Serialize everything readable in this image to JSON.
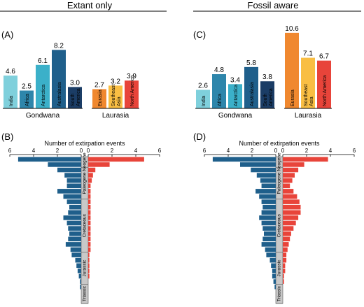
{
  "figure": {
    "left_title": "Extant only",
    "right_title": "Fossil aware"
  },
  "chart_data": [
    {
      "type": "bar",
      "panel_label": "(A)",
      "title": "Extant only",
      "groups": [
        {
          "name": "Gondwana",
          "categories": [
            "India",
            "Africa",
            "Antarctica",
            "Australasia",
            "South America"
          ],
          "values": [
            4.6,
            2.5,
            6.1,
            8.2,
            3.0
          ],
          "colors": [
            "#7fd0dc",
            "#2e86ab",
            "#3bb0c9",
            "#1f5f8b",
            "#1b3d66"
          ]
        },
        {
          "name": "Laurasia",
          "categories": [
            "Eurasia",
            "Southeast Asia",
            "North America"
          ],
          "values": [
            2.7,
            3.2,
            3.9
          ],
          "colors": [
            "#f0882f",
            "#f9be43",
            "#e8443a"
          ]
        }
      ],
      "value_labels": [
        "4.6",
        "2.5",
        "6.1",
        "8.2",
        "3.0",
        "2.7",
        "3.2",
        "3.9"
      ]
    },
    {
      "type": "bar",
      "panel_label": "(C)",
      "title": "Fossil aware",
      "groups": [
        {
          "name": "Gondwana",
          "categories": [
            "India",
            "Africa",
            "Antarctica",
            "Australasia",
            "South America"
          ],
          "values": [
            2.6,
            4.8,
            3.4,
            5.8,
            3.8
          ],
          "colors": [
            "#7fd0dc",
            "#2e86ab",
            "#3bb0c9",
            "#1f5f8b",
            "#1b3d66"
          ]
        },
        {
          "name": "Laurasia",
          "categories": [
            "Eurasia",
            "Southeast Asia",
            "North America"
          ],
          "values": [
            10.6,
            7.1,
            6.7
          ],
          "colors": [
            "#f0882f",
            "#f9be43",
            "#e8443a"
          ]
        }
      ],
      "value_labels": [
        "2.6",
        "4.8",
        "3.4",
        "5.8",
        "3.8",
        "10.6",
        "7.1",
        "6.7"
      ]
    },
    {
      "type": "bar",
      "orientation": "horizontal-mirrored",
      "panel_label": "(B)",
      "xlabel": "Number of extirpation events",
      "xlim": [
        0,
        6
      ],
      "ticks": [
        "6",
        "4",
        "2",
        "0",
        "0",
        "2",
        "4",
        "6"
      ],
      "periods": [
        "Neogene",
        "Paleogene",
        "Cretaceous",
        "Jurassic",
        "Triassic"
      ],
      "left_series": {
        "name": "Gondwana",
        "color": "#1f5f8b",
        "values": [
          5.3,
          2.8,
          2.0,
          1.4,
          1.2,
          1.2,
          2.0,
          1.5,
          1.2,
          1.0,
          1.1,
          1.5,
          1.2,
          1.1,
          1.0,
          1.1,
          1.3,
          0.9,
          0.8,
          0.5,
          0.4,
          0.3,
          0.2,
          0.1,
          0.1
        ]
      },
      "right_series": {
        "name": "Laurasia",
        "color": "#e8443a",
        "values": [
          4.7,
          1.8,
          0.6,
          0.4,
          0.3,
          0.2,
          0.2,
          0.2,
          0.2,
          0.2,
          0.2,
          0.2,
          0.2,
          0.2,
          0.2,
          0.2,
          0.2,
          0.2,
          0.1,
          0.1,
          0.1,
          0.1,
          0.1,
          0.0,
          0.0
        ]
      }
    },
    {
      "type": "bar",
      "orientation": "horizontal-mirrored",
      "panel_label": "(D)",
      "xlabel": "Number of extirpation events",
      "xlim": [
        0,
        6
      ],
      "ticks": [
        "6",
        "4",
        "2",
        "0",
        "0",
        "2",
        "4",
        "6"
      ],
      "periods": [
        "Neogene",
        "Paleogene",
        "Cretaceous",
        "Jurassic",
        "Triassic"
      ],
      "left_series": {
        "name": "Gondwana",
        "color": "#1f5f8b",
        "values": [
          5.3,
          3.0,
          2.1,
          1.6,
          1.3,
          1.2,
          1.7,
          1.4,
          1.2,
          1.1,
          1.2,
          1.4,
          1.2,
          1.1,
          1.0,
          1.1,
          1.2,
          0.9,
          0.8,
          0.5,
          0.4,
          0.3,
          0.3,
          0.2,
          0.1
        ]
      },
      "right_series": {
        "name": "Laurasia",
        "color": "#e8443a",
        "values": [
          3.8,
          1.8,
          1.3,
          1.0,
          0.8,
          0.6,
          0.9,
          1.2,
          1.4,
          1.5,
          1.5,
          1.3,
          1.1,
          0.9,
          0.7,
          0.6,
          0.5,
          0.4,
          0.3,
          0.3,
          0.2,
          0.2,
          0.1,
          0.1,
          0.0
        ]
      }
    }
  ]
}
